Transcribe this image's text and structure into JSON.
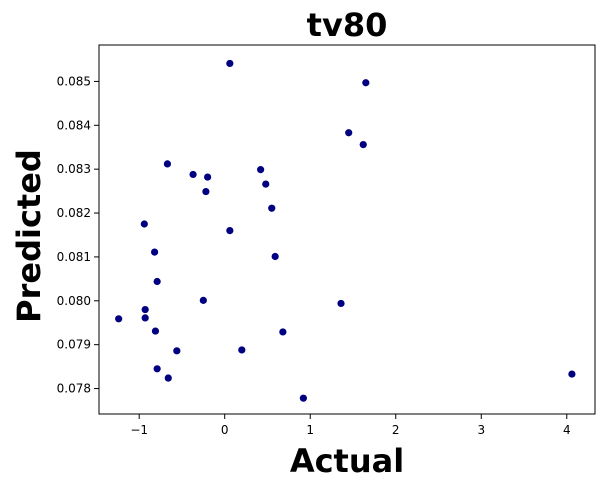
{
  "chart_data": {
    "type": "scatter",
    "title": "tv80",
    "xlabel": "Actual",
    "ylabel": "Predicted",
    "xlim": [
      -1.47,
      4.33
    ],
    "ylim": [
      0.07742,
      0.08583
    ],
    "xticks": [
      -1,
      0,
      1,
      2,
      3,
      4
    ],
    "xtick_labels": [
      "−1",
      "0",
      "1",
      "2",
      "3",
      "4"
    ],
    "yticks": [
      0.078,
      0.079,
      0.08,
      0.081,
      0.082,
      0.083,
      0.084,
      0.085
    ],
    "ytick_labels": [
      "0.078",
      "0.079",
      "0.080",
      "0.081",
      "0.082",
      "0.083",
      "0.084",
      "0.085"
    ],
    "grid": false,
    "marker_color": "#000080",
    "points": [
      {
        "x": 0.06,
        "y": 0.08541
      },
      {
        "x": 1.65,
        "y": 0.08497
      },
      {
        "x": 1.45,
        "y": 0.08383
      },
      {
        "x": 1.62,
        "y": 0.08356
      },
      {
        "x": -0.67,
        "y": 0.08312
      },
      {
        "x": 0.42,
        "y": 0.08299
      },
      {
        "x": -0.37,
        "y": 0.08288
      },
      {
        "x": -0.2,
        "y": 0.08282
      },
      {
        "x": 0.48,
        "y": 0.08266
      },
      {
        "x": -0.22,
        "y": 0.08249
      },
      {
        "x": 0.55,
        "y": 0.08211
      },
      {
        "x": -0.94,
        "y": 0.08175
      },
      {
        "x": 0.06,
        "y": 0.0816
      },
      {
        "x": -0.82,
        "y": 0.08111
      },
      {
        "x": 0.59,
        "y": 0.08101
      },
      {
        "x": -0.79,
        "y": 0.08044
      },
      {
        "x": -0.25,
        "y": 0.08001
      },
      {
        "x": 1.36,
        "y": 0.07994
      },
      {
        "x": -0.93,
        "y": 0.0798
      },
      {
        "x": -1.24,
        "y": 0.07959
      },
      {
        "x": -0.93,
        "y": 0.07961
      },
      {
        "x": -0.81,
        "y": 0.07931
      },
      {
        "x": 0.68,
        "y": 0.07929
      },
      {
        "x": -0.56,
        "y": 0.07886
      },
      {
        "x": 0.2,
        "y": 0.07888
      },
      {
        "x": -0.79,
        "y": 0.07845
      },
      {
        "x": -0.66,
        "y": 0.07824
      },
      {
        "x": 4.06,
        "y": 0.07833
      },
      {
        "x": 0.92,
        "y": 0.07778
      }
    ]
  }
}
